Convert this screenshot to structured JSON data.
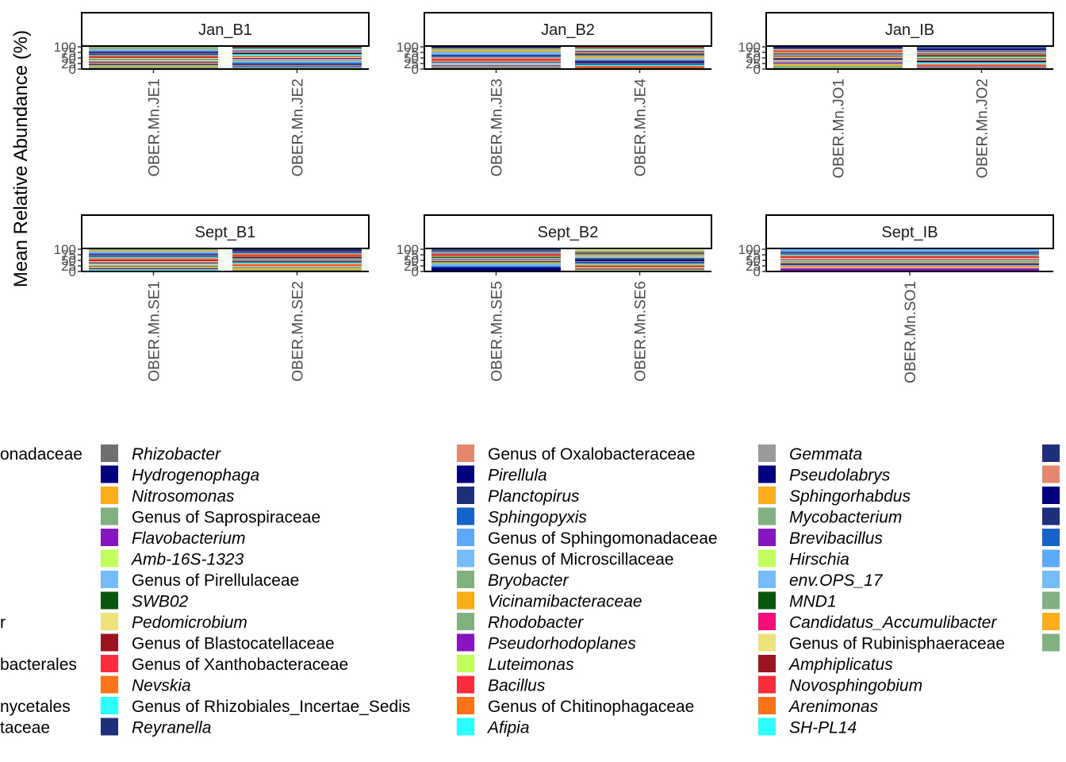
{
  "chart_data": {
    "type": "bar",
    "stacked": true,
    "ylabel": "Mean Relative Abundance (%)",
    "ylim": [
      0,
      100
    ],
    "yticks": [
      0,
      25,
      50,
      75,
      100
    ],
    "ytick_labels": [
      "0",
      "25",
      "50",
      "75",
      "100"
    ],
    "legend_position": "bottom",
    "panels": [
      {
        "label": "Jan_B1",
        "categories": [
          "OBER.Mn.JE1",
          "OBER.Mn.JE2"
        ]
      },
      {
        "label": "Jan_B2",
        "categories": [
          "OBER.Mn.JE3",
          "OBER.Mn.JE4"
        ]
      },
      {
        "label": "Jan_IB",
        "categories": [
          "OBER.Mn.JO1",
          "OBER.Mn.JO2"
        ]
      },
      {
        "label": "Sept_B1",
        "categories": [
          "OBER.Mn.SE1",
          "OBER.Mn.SE2"
        ]
      },
      {
        "label": "Sept_B2",
        "categories": [
          "OBER.Mn.SE5",
          "OBER.Mn.SE6"
        ]
      },
      {
        "label": "Sept_IB",
        "categories": [
          "OBER.Mn.SO1"
        ]
      }
    ],
    "legend_partial_left": [
      "onadaceae",
      "",
      "",
      "",
      "",
      "",
      "",
      "",
      "r",
      "",
      "bacterales",
      "",
      "nycetales",
      "taceae"
    ],
    "legend_columns": [
      [
        {
          "label": "Rhizobacter",
          "italic": true,
          "color": "#707070"
        },
        {
          "label": "Hydrogenophaga",
          "italic": true,
          "color": "#000080"
        },
        {
          "label": "Nitrosomonas",
          "italic": true,
          "color": "#fbad19"
        },
        {
          "label": "Genus of Saprospiraceae",
          "italic": false,
          "color": "#81b180"
        },
        {
          "label": "Flavobacterium",
          "italic": true,
          "color": "#8716c2"
        },
        {
          "label": "Amb-16S-1323",
          "italic": true,
          "color": "#c3ff5c"
        },
        {
          "label": "Genus of Pirellulaceae",
          "italic": false,
          "color": "#74bcf8"
        },
        {
          "label": "SWB02",
          "italic": true,
          "color": "#07560b"
        },
        {
          "label": "Pedomicrobium",
          "italic": true,
          "color": "#ece47a"
        },
        {
          "label": "Genus of Blastocatellaceae",
          "italic": false,
          "color": "#9d1421"
        },
        {
          "label": "Genus of Xanthobacteraceae",
          "italic": false,
          "color": "#fe2d3d"
        },
        {
          "label": "Nevskia",
          "italic": true,
          "color": "#fe7317"
        },
        {
          "label": "Genus of Rhizobiales_Incertae_Sedis",
          "italic": false,
          "color": "#2cffff"
        },
        {
          "label": "Reyranella",
          "italic": true,
          "color": "#1f2f7b"
        }
      ],
      [
        {
          "label": "Genus of Oxalobacteraceae",
          "italic": false,
          "color": "#e5876e"
        },
        {
          "label": "Pirellula",
          "italic": true,
          "color": "#000080"
        },
        {
          "label": "Planctopirus",
          "italic": true,
          "color": "#1f2f7b"
        },
        {
          "label": "Sphingopyxis",
          "italic": true,
          "color": "#1563c8"
        },
        {
          "label": "Genus of Sphingomonadaceae",
          "italic": false,
          "color": "#5ea8f9"
        },
        {
          "label": "Genus of Microscillaceae",
          "italic": false,
          "color": "#74bcf8"
        },
        {
          "label": "Bryobacter",
          "italic": true,
          "color": "#81b180"
        },
        {
          "label": "Vicinamibacteraceae",
          "italic": true,
          "color": "#fbad19"
        },
        {
          "label": "Rhodobacter",
          "italic": true,
          "color": "#81b180"
        },
        {
          "label": "Pseudorhodoplanes",
          "italic": true,
          "color": "#8716c2"
        },
        {
          "label": "Luteimonas",
          "italic": true,
          "color": "#c3ff5c"
        },
        {
          "label": "Bacillus",
          "italic": true,
          "color": "#fe2d3d"
        },
        {
          "label": "Genus of Chitinophagaceae",
          "italic": false,
          "color": "#fe7317"
        },
        {
          "label": "Afipia",
          "italic": true,
          "color": "#2cffff"
        }
      ],
      [
        {
          "label": "Gemmata",
          "italic": true,
          "color": "#9a9a9a"
        },
        {
          "label": "Pseudolabrys",
          "italic": true,
          "color": "#000080"
        },
        {
          "label": "Sphingorhabdus",
          "italic": true,
          "color": "#fbad19"
        },
        {
          "label": "Mycobacterium",
          "italic": true,
          "color": "#81b180"
        },
        {
          "label": "Brevibacillus",
          "italic": true,
          "color": "#8716c2"
        },
        {
          "label": "Hirschia",
          "italic": true,
          "color": "#c3ff5c"
        },
        {
          "label": "env.OPS_17",
          "italic": true,
          "color": "#74bcf8"
        },
        {
          "label": "MND1",
          "italic": true,
          "color": "#07560b"
        },
        {
          "label": "Candidatus_Accumulibacter",
          "italic": true,
          "color": "#f70c7a"
        },
        {
          "label": "Genus of Rubinisphaeraceae",
          "italic": false,
          "color": "#ece47a"
        },
        {
          "label": "Amphiplicatus",
          "italic": true,
          "color": "#9d1421"
        },
        {
          "label": "Novosphingobium",
          "italic": true,
          "color": "#fe2d3d"
        },
        {
          "label": "Arenimonas",
          "italic": true,
          "color": "#fe7317"
        },
        {
          "label": "SH-PL14",
          "italic": true,
          "color": "#2cffff"
        }
      ]
    ],
    "legend_partial_right_colors": [
      "#1f2f7b",
      "#e5876e",
      "#000080",
      "#1f2f7b",
      "#1563c8",
      "#5ea8f9",
      "#74bcf8",
      "#81b180",
      "#fbad19",
      "#81b180"
    ]
  }
}
